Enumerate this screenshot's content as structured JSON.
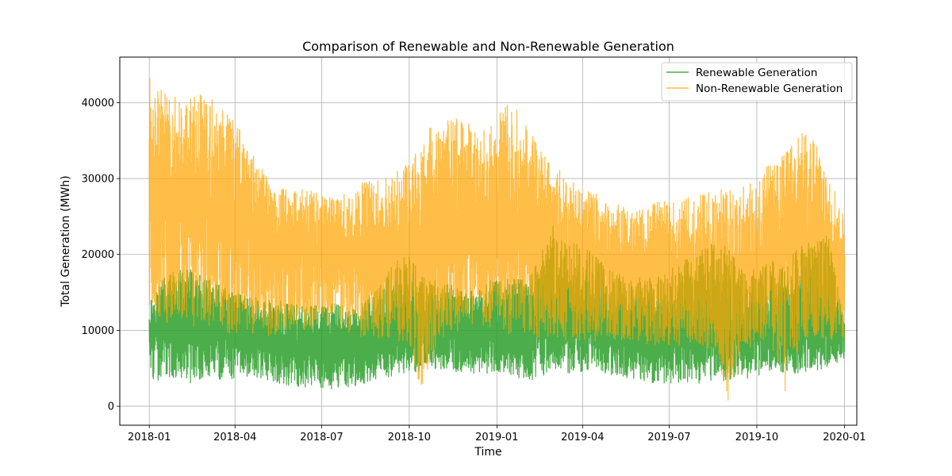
{
  "chart_data": {
    "type": "line",
    "title": "Comparison of Renewable and Non-Renewable Generation",
    "xlabel": "Time",
    "ylabel": "Total Generation (MWh)",
    "xlim": [
      "2017-12-01",
      "2020-01-14"
    ],
    "ylim": [
      -2500,
      46000
    ],
    "x_ticks": [
      "2018-01",
      "2018-04",
      "2018-07",
      "2018-10",
      "2019-01",
      "2019-04",
      "2019-07",
      "2019-10",
      "2020-01"
    ],
    "y_ticks": [
      0,
      10000,
      20000,
      30000,
      40000
    ],
    "grid": true,
    "legend_position": "top-right",
    "series": [
      {
        "name": "Renewable Generation",
        "color": "#2ca02c",
        "opacity": 0.85,
        "x": [
          "2018-01-01",
          "2018-01-15",
          "2018-02-01",
          "2018-02-15",
          "2018-03-01",
          "2018-03-15",
          "2018-04-01",
          "2018-04-15",
          "2018-05-01",
          "2018-05-15",
          "2018-06-01",
          "2018-06-15",
          "2018-07-01",
          "2018-07-15",
          "2018-08-01",
          "2018-08-15",
          "2018-09-01",
          "2018-09-15",
          "2018-10-01",
          "2018-10-15",
          "2018-11-01",
          "2018-11-15",
          "2018-12-01",
          "2018-12-15",
          "2019-01-01",
          "2019-01-15",
          "2019-02-01",
          "2019-02-15",
          "2019-03-01",
          "2019-03-15",
          "2019-04-01",
          "2019-04-15",
          "2019-05-01",
          "2019-05-15",
          "2019-06-01",
          "2019-06-15",
          "2019-07-01",
          "2019-07-15",
          "2019-08-01",
          "2019-08-15",
          "2019-09-01",
          "2019-09-15",
          "2019-10-01",
          "2019-10-15",
          "2019-11-01",
          "2019-11-15",
          "2019-12-01",
          "2019-12-15",
          "2020-01-01"
        ],
        "center": [
          9500,
          9500,
          10500,
          11000,
          11000,
          10000,
          9500,
          9000,
          8500,
          8000,
          8000,
          7500,
          7500,
          7500,
          7500,
          8000,
          8500,
          9000,
          9500,
          9500,
          9500,
          9500,
          9500,
          9500,
          9500,
          9500,
          9500,
          10000,
          10500,
          10500,
          10500,
          10000,
          9500,
          9000,
          9000,
          9000,
          9000,
          9000,
          9000,
          9000,
          9000,
          9000,
          9500,
          9500,
          9500,
          9500,
          9500,
          10000,
          10000
        ],
        "low": [
          2000,
          3500,
          3500,
          3000,
          4000,
          3500,
          3500,
          4000,
          3500,
          3000,
          2500,
          2500,
          2500,
          2000,
          2500,
          3000,
          3500,
          4000,
          4500,
          4500,
          5000,
          4500,
          4500,
          4000,
          4500,
          4000,
          3500,
          3500,
          5000,
          4000,
          4500,
          4500,
          4000,
          3500,
          3500,
          3000,
          3000,
          3000,
          3000,
          3000,
          3500,
          3500,
          4000,
          4500,
          4500,
          4000,
          4500,
          5000,
          6000
        ],
        "high": [
          14000,
          17000,
          18000,
          18000,
          17000,
          16000,
          15000,
          14500,
          14000,
          14000,
          13500,
          13500,
          13500,
          13500,
          13000,
          14000,
          16000,
          19000,
          20000,
          17000,
          16500,
          16000,
          15500,
          16000,
          17000,
          17000,
          17000,
          20000,
          24000,
          22000,
          21500,
          20000,
          18000,
          17500,
          17000,
          17000,
          18000,
          19000,
          20500,
          21500,
          21000,
          18500,
          18000,
          19000,
          20000,
          21000,
          22000,
          23000,
          11000
        ]
      },
      {
        "name": "Non-Renewable Generation",
        "color": "#ffa500",
        "opacity": 0.72,
        "x": [
          "2018-01-01",
          "2018-01-15",
          "2018-02-01",
          "2018-02-15",
          "2018-03-01",
          "2018-03-15",
          "2018-04-01",
          "2018-04-15",
          "2018-05-01",
          "2018-05-15",
          "2018-06-01",
          "2018-06-15",
          "2018-07-01",
          "2018-07-15",
          "2018-08-01",
          "2018-08-15",
          "2018-09-01",
          "2018-09-15",
          "2018-10-01",
          "2018-10-15",
          "2018-11-01",
          "2018-11-15",
          "2018-12-01",
          "2018-12-15",
          "2019-01-01",
          "2019-01-15",
          "2019-02-01",
          "2019-02-15",
          "2019-03-01",
          "2019-03-15",
          "2019-04-01",
          "2019-04-15",
          "2019-05-01",
          "2019-05-15",
          "2019-06-01",
          "2019-06-15",
          "2019-07-01",
          "2019-07-15",
          "2019-08-01",
          "2019-08-15",
          "2019-09-01",
          "2019-09-15",
          "2019-10-01",
          "2019-10-15",
          "2019-11-01",
          "2019-11-15",
          "2019-12-01",
          "2019-12-15",
          "2020-01-01"
        ],
        "center": [
          27000,
          27000,
          27000,
          26500,
          26000,
          25500,
          24500,
          24000,
          22000,
          21000,
          21000,
          20000,
          20000,
          20000,
          19500,
          19500,
          19000,
          19000,
          19500,
          20500,
          22500,
          23000,
          23500,
          23500,
          24000,
          24500,
          23500,
          22500,
          21000,
          20000,
          19500,
          19000,
          18500,
          18500,
          18000,
          17500,
          17000,
          16500,
          16500,
          16500,
          16500,
          17000,
          17500,
          20000,
          21500,
          22000,
          20000,
          17500,
          16000
        ],
        "low": [
          13000,
          11000,
          11000,
          10500,
          10000,
          9500,
          9500,
          9500,
          9000,
          9000,
          10000,
          10000,
          10000,
          10000,
          9500,
          9000,
          9000,
          8500,
          8500,
          1000,
          9000,
          9500,
          10000,
          10000,
          9500,
          9500,
          9500,
          9000,
          9000,
          8500,
          8500,
          8500,
          8500,
          8500,
          8000,
          8000,
          8000,
          8000,
          8000,
          7500,
          0,
          7500,
          8000,
          8500,
          0,
          8500,
          8500,
          8500,
          9000
        ],
        "high": [
          44000,
          41500,
          41000,
          41000,
          42000,
          40000,
          37500,
          34500,
          31000,
          29500,
          29000,
          28500,
          28000,
          28000,
          28000,
          30000,
          30000,
          31000,
          32000,
          35000,
          40500,
          38000,
          37500,
          36000,
          38000,
          41000,
          37000,
          34000,
          32500,
          30000,
          29000,
          28000,
          27000,
          26500,
          26000,
          27000,
          27000,
          27500,
          28000,
          28500,
          29000,
          29000,
          30000,
          32500,
          33500,
          36500,
          35000,
          30000,
          26000
        ]
      }
    ]
  }
}
